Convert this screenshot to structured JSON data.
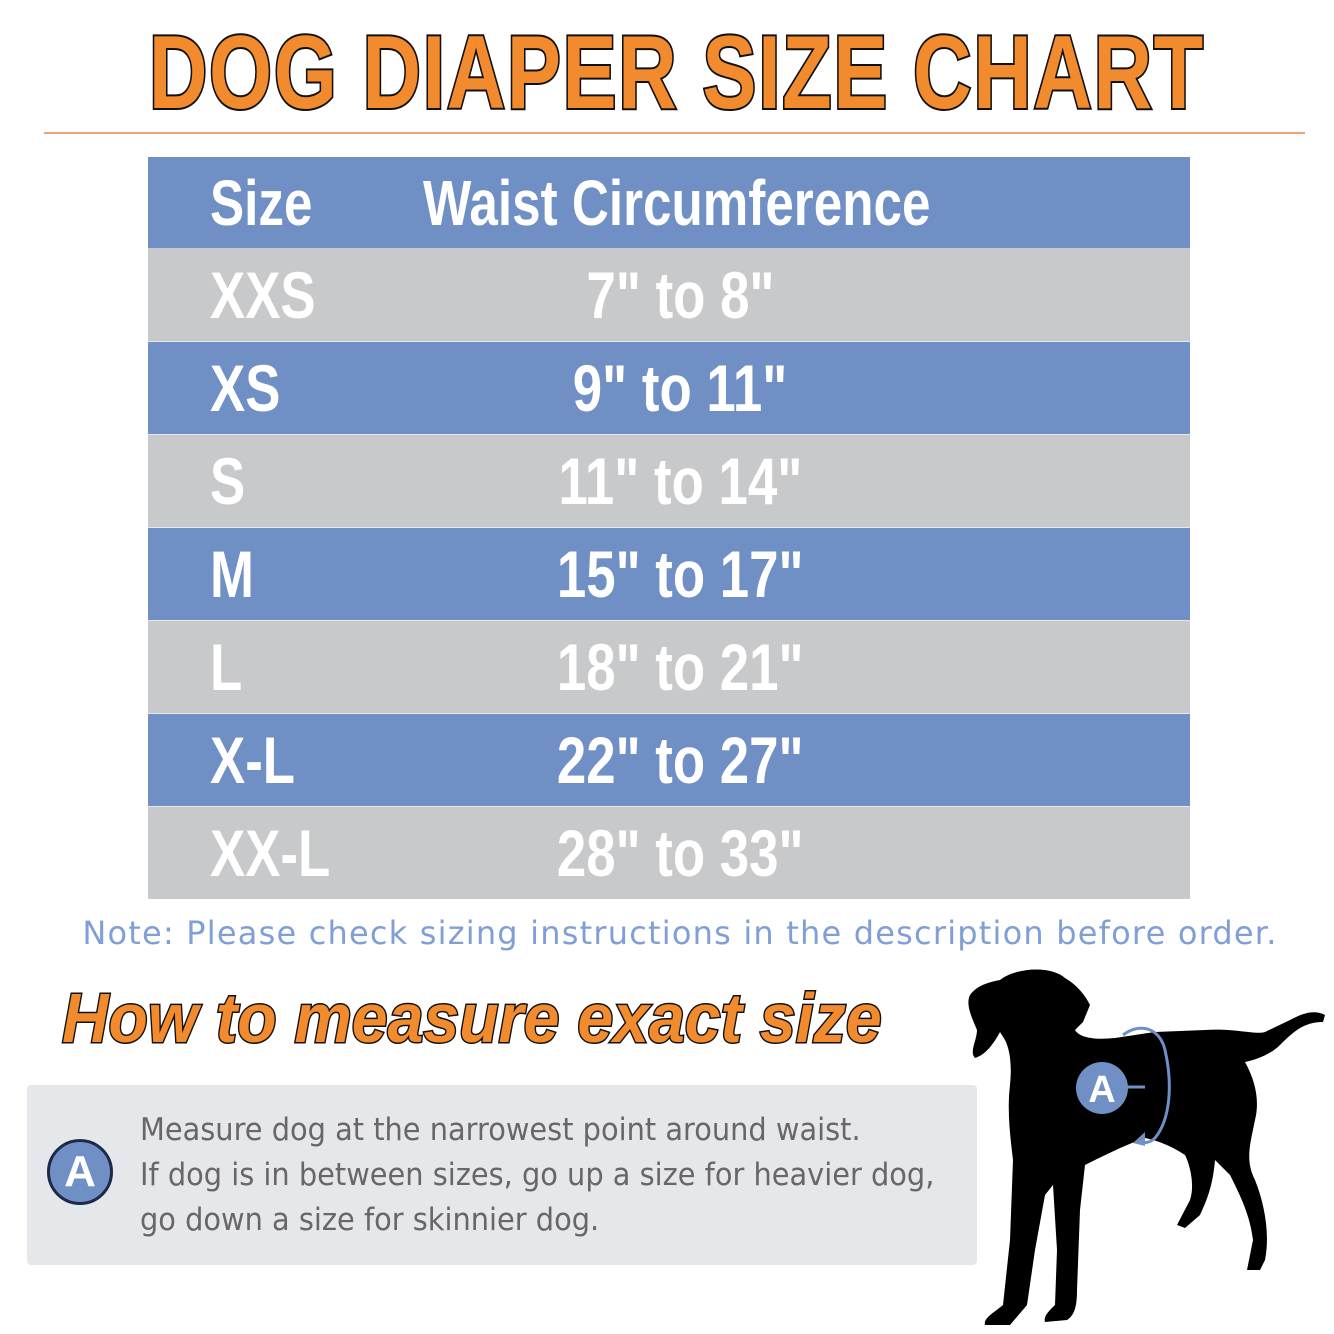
{
  "title": "DOG DIAPER SIZE CHART",
  "table": {
    "headers": [
      "Size",
      "Waist Circumference"
    ],
    "rows": [
      {
        "size": "XXS",
        "waist": "7\" to 8\""
      },
      {
        "size": "XS",
        "waist": "9\" to 11\""
      },
      {
        "size": "S",
        "waist": "11\" to 14\""
      },
      {
        "size": "M",
        "waist": "15\" to 17\""
      },
      {
        "size": "L",
        "waist": "18\" to 21\""
      },
      {
        "size": "X-L",
        "waist": "22\" to 27\""
      },
      {
        "size": "XX-L",
        "waist": "28\" to 33\""
      }
    ]
  },
  "note": "Note: Please check sizing instructions in the description before order.",
  "how_to": {
    "heading": "How to measure exact size",
    "badge": "A",
    "lines": [
      "Measure dog at the narrowest point around waist.",
      "If dog is in between sizes, go up a size for heavier dog,",
      "go down a size for skinnier dog."
    ]
  },
  "illustration": {
    "icon": "dog-silhouette",
    "marker": "A"
  },
  "colors": {
    "orange": "#f28a2e",
    "blue": "#6f8fc5",
    "gray": "#c8c9cb",
    "note": "#7f9fd6"
  }
}
